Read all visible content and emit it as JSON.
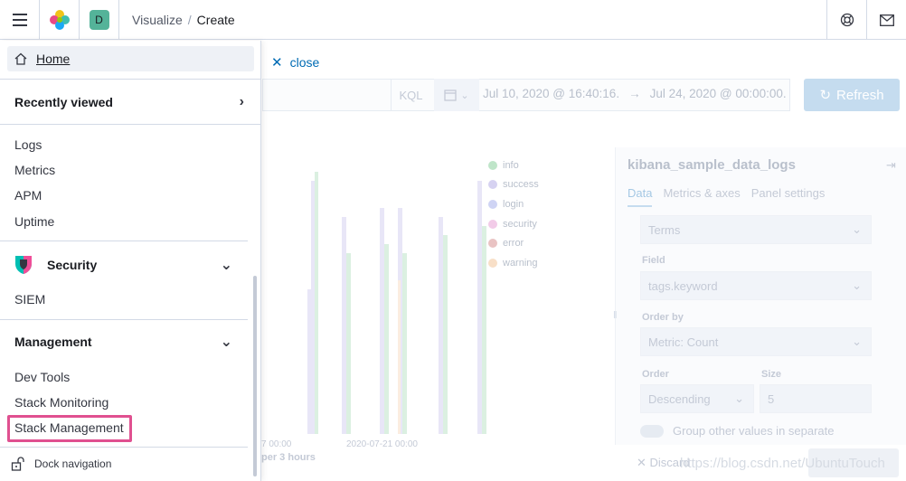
{
  "header": {
    "avatar_letter": "D",
    "breadcrumbs": [
      "Visualize",
      "Create"
    ],
    "breadcrumb_sep": "/"
  },
  "background": {
    "close_label": "close",
    "kql_label": "KQL",
    "date_start": "Jul 10, 2020 @ 16:40:16.",
    "date_arrow": "→",
    "date_end": "Jul 24, 2020 @ 00:00:00.",
    "refresh_label": "Refresh",
    "legend": [
      {
        "label": "info",
        "color": "#bfe5c9"
      },
      {
        "label": "success",
        "color": "#d6d2f1"
      },
      {
        "label": "login",
        "color": "#cfd4f4"
      },
      {
        "label": "security",
        "color": "#f2cbe8"
      },
      {
        "label": "error",
        "color": "#e9c3c3"
      },
      {
        "label": "warning",
        "color": "#f8dfc7"
      }
    ],
    "x_tick_1": "7 00:00",
    "x_tick_2": "2020-07-21 00:00",
    "x_title": "per 3 hours",
    "panel": {
      "title": "kibana_sample_data_logs",
      "tabs": [
        "Data",
        "Metrics & axes",
        "Panel settings"
      ],
      "agg_value": "Terms",
      "field_label": "Field",
      "field_value": "tags.keyword",
      "orderby_label": "Order by",
      "orderby_value": "Metric: Count",
      "order_label": "Order",
      "order_value": "Descending",
      "size_label": "Size",
      "size_value": "5",
      "group_other_label": "Group other values in separate",
      "discard_label": "Discard"
    },
    "watermark": "https://blog.csdn.net/UbuntuTouch"
  },
  "nav": {
    "home": "Home",
    "recently_viewed": "Recently viewed",
    "observability_links": [
      "Logs",
      "Metrics",
      "APM",
      "Uptime"
    ],
    "security_title": "Security",
    "security_links": [
      "SIEM"
    ],
    "management_title": "Management",
    "management_links": [
      "Dev Tools",
      "Stack Monitoring",
      "Stack Management"
    ],
    "dock_label": "Dock navigation"
  }
}
